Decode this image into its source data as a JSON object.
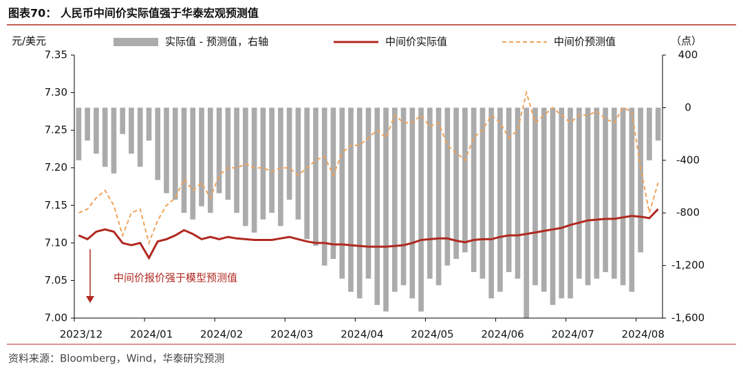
{
  "chart_data": {
    "type": "bar_line",
    "title": "图表70： 人民币中间价实际值强于华泰宏观预测值",
    "y_label": "元/美元",
    "y2_label": "（点）",
    "annotation": "中间价报价强于模型预测值",
    "source": "资料来源：Bloomberg，Wind，华泰研究预测",
    "categories": [
      "2023/12",
      null,
      null,
      null,
      null,
      null,
      null,
      null,
      "2024/01",
      null,
      null,
      null,
      null,
      null,
      null,
      null,
      "2024/02",
      null,
      null,
      null,
      null,
      null,
      null,
      null,
      "2024/03",
      null,
      null,
      null,
      null,
      null,
      null,
      null,
      "2024/04",
      null,
      null,
      null,
      null,
      null,
      null,
      null,
      "2024/05",
      null,
      null,
      null,
      null,
      null,
      null,
      null,
      "2024/06",
      null,
      null,
      null,
      null,
      null,
      null,
      null,
      "2024/07",
      null,
      null,
      null,
      null,
      null,
      null,
      null,
      "2024/08",
      null,
      null
    ],
    "series": [
      {
        "name": "实际值 - 预测值，右轴",
        "type": "bar",
        "axis": "y2",
        "color": "#ababab",
        "values": [
          -400,
          -250,
          -350,
          -450,
          -500,
          -200,
          -350,
          -450,
          -250,
          -550,
          -650,
          -700,
          -800,
          -850,
          -750,
          -800,
          -650,
          -700,
          -800,
          -900,
          -950,
          -850,
          -800,
          -900,
          -700,
          -850,
          -1000,
          -1050,
          -1200,
          -1150,
          -1300,
          -1400,
          -1450,
          -1300,
          -1500,
          -1550,
          -1400,
          -1350,
          -1450,
          -1550,
          -1300,
          -1350,
          -1200,
          -1150,
          -1100,
          -1250,
          -1300,
          -1450,
          -1400,
          -1250,
          -1300,
          -1600,
          -1350,
          -1400,
          -1500,
          -1450,
          -1450,
          -1300,
          -1350,
          -1300,
          -1250,
          -1300,
          -1350,
          -1400,
          -1100,
          -400,
          -250
        ]
      },
      {
        "name": "中间价实际值",
        "type": "line",
        "axis": "y",
        "color": "#b0281f",
        "dashed": false,
        "values": [
          7.11,
          7.105,
          7.115,
          7.118,
          7.115,
          7.1,
          7.097,
          7.1,
          7.08,
          7.102,
          7.105,
          7.11,
          7.117,
          7.112,
          7.105,
          7.108,
          7.105,
          7.108,
          7.106,
          7.105,
          7.104,
          7.104,
          7.104,
          7.106,
          7.108,
          7.105,
          7.102,
          7.1,
          7.1,
          7.098,
          7.098,
          7.097,
          7.096,
          7.095,
          7.095,
          7.095,
          7.096,
          7.097,
          7.1,
          7.104,
          7.105,
          7.106,
          7.106,
          7.103,
          7.101,
          7.104,
          7.105,
          7.105,
          7.108,
          7.11,
          7.11,
          7.112,
          7.114,
          7.116,
          7.118,
          7.12,
          7.124,
          7.127,
          7.13,
          7.131,
          7.132,
          7.132,
          7.134,
          7.136,
          7.135,
          7.133,
          7.145
        ]
      },
      {
        "name": "中间价预测值",
        "type": "line",
        "axis": "y",
        "color": "#eea25a",
        "dashed": true,
        "values": [
          7.14,
          7.145,
          7.16,
          7.17,
          7.15,
          7.11,
          7.14,
          7.145,
          7.1,
          7.13,
          7.15,
          7.16,
          7.185,
          7.17,
          7.18,
          7.16,
          7.19,
          7.2,
          7.2,
          7.205,
          7.2,
          7.2,
          7.195,
          7.2,
          7.2,
          7.19,
          7.2,
          7.21,
          7.215,
          7.19,
          7.22,
          7.23,
          7.23,
          7.24,
          7.25,
          7.24,
          7.27,
          7.26,
          7.26,
          7.27,
          7.255,
          7.26,
          7.23,
          7.22,
          7.21,
          7.24,
          7.25,
          7.27,
          7.26,
          7.24,
          7.25,
          7.3,
          7.26,
          7.27,
          7.28,
          7.27,
          7.26,
          7.27,
          7.27,
          7.275,
          7.265,
          7.26,
          7.28,
          7.275,
          7.2,
          7.14,
          7.18
        ]
      }
    ],
    "ylim": [
      7.0,
      7.35
    ],
    "yticks": [
      {
        "value": 7.0,
        "label": "7.00"
      },
      {
        "value": 7.05,
        "label": "7.05"
      },
      {
        "value": 7.1,
        "label": "7.10"
      },
      {
        "value": 7.15,
        "label": "7.15"
      },
      {
        "value": 7.2,
        "label": "7.20"
      },
      {
        "value": 7.25,
        "label": "7.25"
      },
      {
        "value": 7.3,
        "label": "7.30"
      },
      {
        "value": 7.35,
        "label": "7.35"
      }
    ],
    "y2lim": [
      -1600,
      400
    ],
    "y2ticks": [
      400,
      0,
      -400,
      -800,
      {
        "value": -1200,
        "label": "-1,200"
      },
      {
        "value": -1600,
        "label": "-1,600"
      }
    ]
  }
}
